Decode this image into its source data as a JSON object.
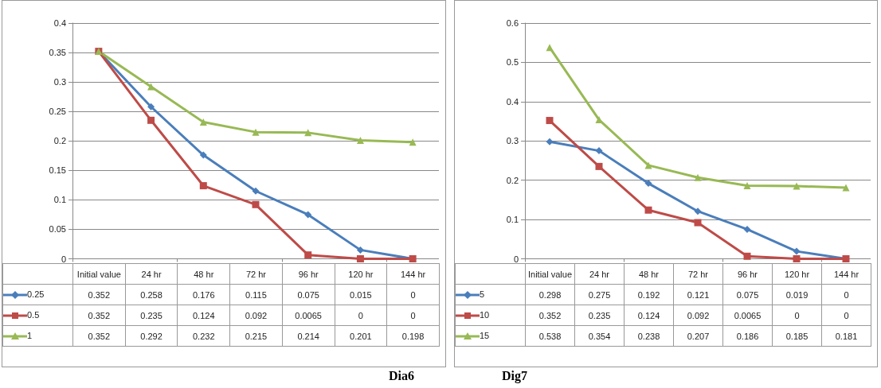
{
  "chart_data": [
    {
      "type": "line",
      "categories": [
        "Initial value",
        "24 hr",
        "48 hr",
        "72 hr",
        "96 hr",
        "120 hr",
        "144 hr"
      ],
      "series": [
        {
          "name": "0.25",
          "color": "#4a7ebb",
          "marker": "diamond",
          "values": [
            0.352,
            0.258,
            0.176,
            0.115,
            0.075,
            0.015,
            0
          ]
        },
        {
          "name": "0.5",
          "color": "#be4b48",
          "marker": "square",
          "values": [
            0.352,
            0.235,
            0.124,
            0.092,
            0.0065,
            0,
            0
          ]
        },
        {
          "name": "1",
          "color": "#98b954",
          "marker": "triangle",
          "values": [
            0.352,
            0.292,
            0.232,
            0.215,
            0.214,
            0.201,
            0.198
          ]
        }
      ],
      "ylim": [
        0,
        0.4
      ],
      "yticks": [
        0,
        0.05,
        0.1,
        0.15,
        0.2,
        0.25,
        0.3,
        0.35,
        0.4
      ],
      "grid": "y",
      "legend": "bottom",
      "data_labels": true,
      "annotations": [
        "Dia6"
      ]
    },
    {
      "type": "line",
      "categories": [
        "Initial value",
        "24 hr",
        "48 hr",
        "72 hr",
        "96 hr",
        "120 hr",
        "144 hr"
      ],
      "series": [
        {
          "name": "5",
          "color": "#4a7ebb",
          "marker": "diamond",
          "values": [
            0.298,
            0.275,
            0.192,
            0.121,
            0.075,
            0.019,
            0
          ]
        },
        {
          "name": "10",
          "color": "#be4b48",
          "marker": "square",
          "values": [
            0.352,
            0.235,
            0.124,
            0.092,
            0.0065,
            0,
            0
          ]
        },
        {
          "name": "15",
          "color": "#98b954",
          "marker": "triangle",
          "values": [
            0.538,
            0.354,
            0.238,
            0.207,
            0.186,
            0.185,
            0.181
          ]
        }
      ],
      "ylim": [
        0,
        0.6
      ],
      "yticks": [
        0,
        0.1,
        0.2,
        0.3,
        0.4,
        0.5,
        0.6
      ],
      "grid": "y",
      "legend": "bottom",
      "data_labels": true,
      "annotations": [
        "Dig7"
      ]
    }
  ]
}
